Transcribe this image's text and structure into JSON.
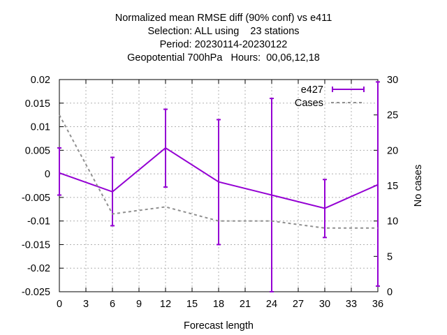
{
  "chart_data": {
    "type": "line",
    "title_lines": [
      "Normalized mean RMSE diff (90% conf) vs e411",
      "Selection: ALL using    23 stations",
      "Period: 20230114-20230122",
      "Geopotential 700hPa   Hours:  00,06,12,18"
    ],
    "xlabel": "Forecast length",
    "ylabel_right": "No cases",
    "xlim": [
      0,
      36
    ],
    "ylim": [
      -0.025,
      0.02
    ],
    "y2lim": [
      0,
      30
    ],
    "x_ticks": [
      "0",
      "3",
      "6",
      "9",
      "12",
      "15",
      "18",
      "21",
      "24",
      "27",
      "30",
      "33",
      "36"
    ],
    "y_ticks": [
      "0.02",
      "0.015",
      "0.01",
      "0.005",
      "0",
      "-0.005",
      "-0.01",
      "-0.015",
      "-0.02",
      "-0.025"
    ],
    "y2_ticks": [
      "30",
      "25",
      "20",
      "15",
      "10",
      "5",
      "0"
    ],
    "grid": true,
    "legend_position": "top-right",
    "series": [
      {
        "name": "e427",
        "color": "#9400d3",
        "style": "line-errorbars",
        "x": [
          0,
          6,
          12,
          18,
          24,
          30,
          36
        ],
        "y": [
          0.0002,
          -0.0038,
          0.0055,
          -0.0017,
          -0.0045,
          -0.0073,
          -0.0023
        ],
        "err_low": [
          -0.0045,
          -0.011,
          -0.0028,
          -0.015,
          -0.025,
          -0.0135,
          -0.0238
        ],
        "err_high": [
          0.0055,
          0.0035,
          0.0137,
          0.0115,
          0.016,
          -0.0012,
          0.0195
        ]
      },
      {
        "name": "Cases",
        "color": "#909090",
        "style": "dashed",
        "axis": "right",
        "x": [
          0,
          6,
          12,
          18,
          24,
          30,
          36
        ],
        "y": [
          25,
          11,
          12,
          10,
          10,
          9,
          9
        ]
      }
    ]
  }
}
